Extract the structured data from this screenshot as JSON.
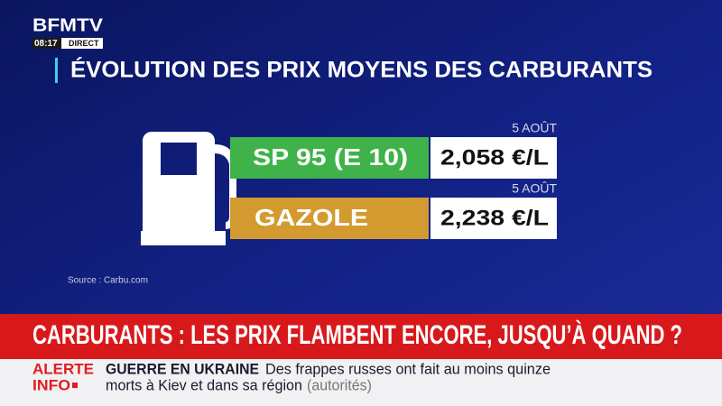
{
  "logo": {
    "name": "BFMTV",
    "time": "08:17",
    "live": "DIRECT"
  },
  "title": "ÉVOLUTION DES PRIX MOYENS DES CARBURANTS",
  "prices": [
    {
      "date": "5 AOÛT",
      "fuel": "SP 95 (E 10)",
      "price": "2,058 €/L"
    },
    {
      "date": "5 AOÛT",
      "fuel": "GAZOLE",
      "price": "2,238 €/L"
    }
  ],
  "source": "Source : Carbu.com",
  "headline": "CARBURANTS : LES PRIX FLAMBENT ENCORE, JUSQU’À QUAND ?",
  "ticker": {
    "label_line1": "ALERTE",
    "label_line2": "INFO",
    "topic": "GUERRE EN UKRAINE",
    "text_line1": "Des frappes russes ont fait au moins quinze",
    "text_line2": "morts à Kiev et dans sa région",
    "attribution": "(autorités)"
  }
}
